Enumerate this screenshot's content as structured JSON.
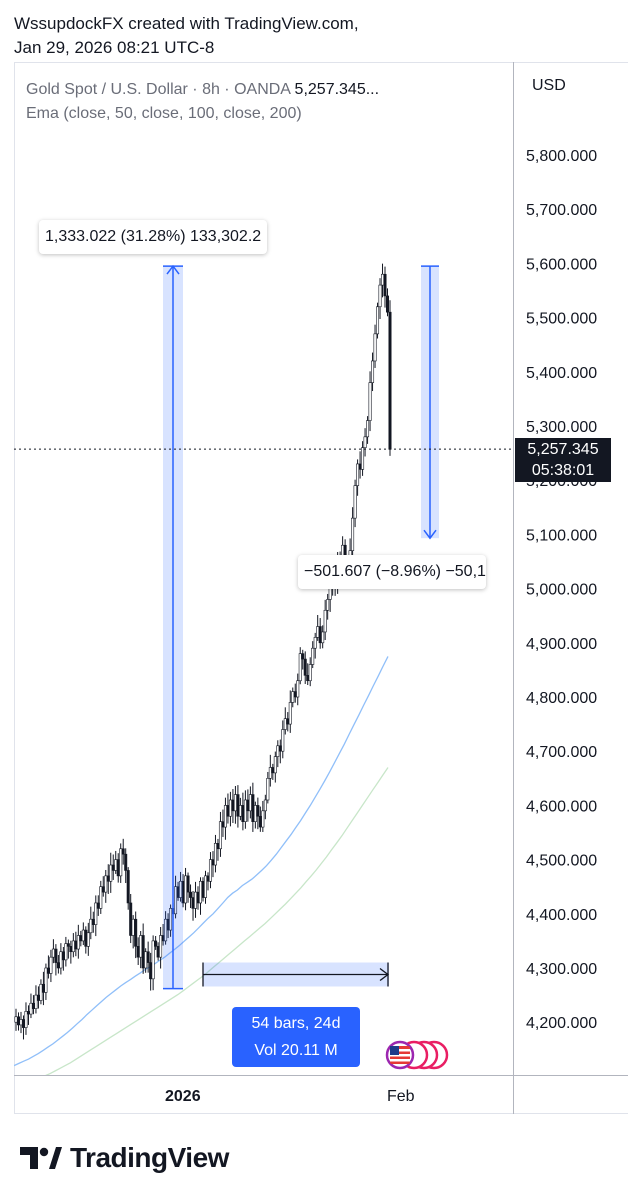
{
  "header": {
    "line1": "WssupdockFX created with TradingView.com,",
    "line2": "Jan 29, 2026 08:21 UTC-8"
  },
  "legend": {
    "symbol": "Gold Spot / U.S. Dollar · 8h · OANDA",
    "price": "5,257.345...",
    "indicator": "Ema (close, 50, close, 100, close, 200)"
  },
  "currency_label": "USD",
  "current_price": {
    "value": "5,257.345",
    "countdown": "05:38:01"
  },
  "measurements": {
    "rise": "1,333.022 (31.28%) 133,302.2",
    "drop": "−501.607 (−8.96%) −50,1",
    "range": {
      "bars": "54 bars, 24d",
      "vol": "Vol 20.11 M"
    }
  },
  "footer": {
    "brand": "TradingView"
  },
  "colors": {
    "up": "#ffffff",
    "down": "#131722",
    "wick": "#131722",
    "ema_fast": "#90bff9",
    "ema_slow": "#c8e6c9",
    "measure": "#2962ff",
    "measure_fill": "rgba(41,98,255,0.18)"
  },
  "chart_data": {
    "type": "candlestick",
    "y_ticks": [
      "5,800.000",
      "5,700.000",
      "5,600.000",
      "5,500.000",
      "5,400.000",
      "5,300.000",
      "5,200.000",
      "5,100.000",
      "5,000.000",
      "4,900.000",
      "4,800.000",
      "4,700.000",
      "4,600.000",
      "4,500.000",
      "4,400.000",
      "4,300.000",
      "4,200.000"
    ],
    "y_tick_values": [
      5800,
      5700,
      5600,
      5500,
      5400,
      5300,
      5200,
      5100,
      5000,
      4900,
      4800,
      4700,
      4600,
      4500,
      4400,
      4300,
      4200
    ],
    "x_ticks": [
      "2026",
      "Feb"
    ],
    "ylim": [
      4100,
      5900
    ],
    "current_price": 5257.345,
    "closes": [
      4210,
      4195,
      4205,
      4190,
      4220,
      4215,
      4235,
      4225,
      4250,
      4240,
      4270,
      4255,
      4300,
      4290,
      4320,
      4335,
      4310,
      4300,
      4330,
      4315,
      4345,
      4340,
      4330,
      4350,
      4335,
      4360,
      4350,
      4370,
      4340,
      4365,
      4390,
      4380,
      4420,
      4410,
      4450,
      4440,
      4470,
      4460,
      4490,
      4480,
      4500,
      4470,
      4520,
      4510,
      4480,
      4420,
      4360,
      4390,
      4340,
      4320,
      4360,
      4300,
      4330,
      4310,
      4280,
      4350,
      4340,
      4320,
      4360,
      4350,
      4390,
      4370,
      4410,
      4400,
      4450,
      4430,
      4460,
      4420,
      4470,
      4440,
      4430,
      4410,
      4440,
      4420,
      4460,
      4430,
      4470,
      4460,
      4500,
      4490,
      4530,
      4520,
      4570,
      4560,
      4600,
      4580,
      4610,
      4590,
      4620,
      4580,
      4600,
      4570,
      4610,
      4590,
      4620,
      4570,
      4600,
      4580,
      4560,
      4590,
      4610,
      4650,
      4670,
      4660,
      4690,
      4710,
      4700,
      4740,
      4760,
      4750,
      4790,
      4810,
      4800,
      4830,
      4880,
      4870,
      4840,
      4830,
      4860,
      4890,
      4910,
      4930,
      4900,
      4920,
      4960,
      4980,
      5010,
      5030,
      5000,
      5060,
      5040,
      5080,
      5020,
      5050,
      5070,
      5130,
      5190,
      5230,
      5220,
      5260,
      5280,
      5310,
      5380,
      5420,
      5470,
      5520,
      5560,
      5580,
      5540,
      5510,
      5257
    ],
    "ema_fast": [
      4120,
      4124,
      4128,
      4132,
      4137,
      4142,
      4148,
      4154,
      4160,
      4167,
      4174,
      4181,
      4189,
      4197,
      4205,
      4214,
      4222,
      4230,
      4238,
      4246,
      4253,
      4260,
      4267,
      4273,
      4279,
      4285,
      4291,
      4297,
      4302,
      4308,
      4314,
      4320,
      4327,
      4334,
      4341,
      4349,
      4357,
      4365,
      4374,
      4383,
      4392,
      4400,
      4410,
      4420,
      4430,
      4438,
      4444,
      4452,
      4458,
      4464,
      4472,
      4480,
      4489,
      4499,
      4510,
      4522,
      4534,
      4546,
      4559,
      4572,
      4586,
      4600,
      4615,
      4630,
      4646,
      4662,
      4679,
      4696,
      4713,
      4731,
      4749,
      4767,
      4785,
      4803,
      4821,
      4839,
      4857,
      4875
    ],
    "ema_slow": [
      4080,
      4083,
      4086,
      4089,
      4093,
      4097,
      4101,
      4105,
      4110,
      4115,
      4120,
      4125,
      4131,
      4137,
      4143,
      4149,
      4155,
      4161,
      4167,
      4173,
      4179,
      4185,
      4191,
      4197,
      4203,
      4209,
      4215,
      4221,
      4227,
      4233,
      4239,
      4245,
      4251,
      4258,
      4265,
      4272,
      4279,
      4286,
      4294,
      4302,
      4310,
      4318,
      4326,
      4334,
      4342,
      4350,
      4358,
      4366,
      4374,
      4382,
      4391,
      4400,
      4409,
      4418,
      4428,
      4438,
      4448,
      4459,
      4470,
      4481,
      4493,
      4505,
      4518,
      4531,
      4544,
      4558,
      4572,
      4586,
      4600,
      4614,
      4628,
      4642,
      4656,
      4670
    ],
    "measure_rise": {
      "from": 4262,
      "to": 5595
    },
    "measure_drop": {
      "from": 5595,
      "to": 5093
    },
    "measure_range": {
      "price": 4288
    }
  }
}
